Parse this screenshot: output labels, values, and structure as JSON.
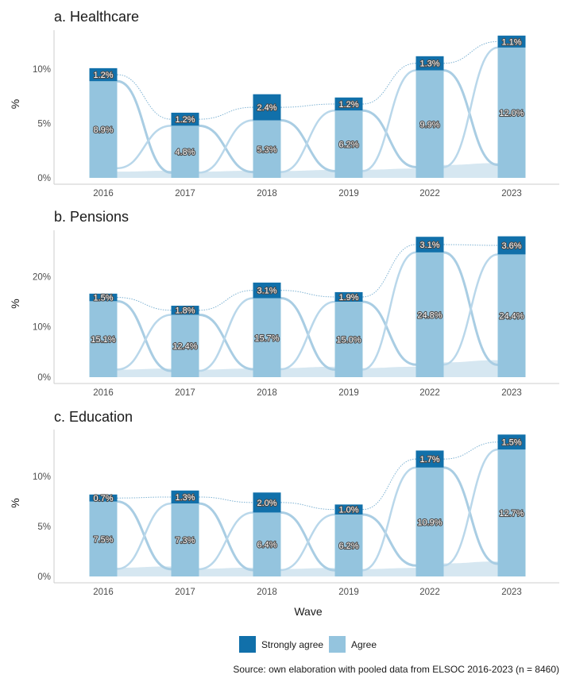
{
  "chart_data": {
    "type": "bar",
    "stacked": true,
    "xlabel": "Wave",
    "ylabel": "%",
    "grid": false,
    "legend_position": "bottom",
    "colors": {
      "strongly_agree": "#1170aa",
      "agree": "#94c4de",
      "flow": "#cfe3ef"
    },
    "legend": [
      "Strongly agree",
      "Agree"
    ],
    "caption": "Source: own elaboration with pooled data from ELSOC 2016-2023 (n = 8460)",
    "categories": [
      "2016",
      "2017",
      "2018",
      "2019",
      "2022",
      "2023"
    ],
    "panels": [
      {
        "title": "a. Healthcare",
        "ylim": [
          0,
          13.6
        ],
        "y_ticks": [
          0,
          5,
          10
        ],
        "y_tick_labels": [
          "0%",
          "5%",
          "10%"
        ],
        "series": [
          {
            "name": "Agree",
            "values": [
              8.9,
              4.8,
              5.3,
              6.2,
              9.9,
              12.0
            ],
            "labels": [
              "8.9%",
              "4.8%",
              "5.3%",
              "6.2%",
              "9.9%",
              "12.0%"
            ]
          },
          {
            "name": "Strongly agree",
            "values": [
              1.2,
              1.2,
              2.4,
              1.2,
              1.3,
              1.1
            ],
            "labels": [
              "1.2%",
              "1.2%",
              "2.4%",
              "1.2%",
              "1.3%",
              "1.1%"
            ]
          }
        ]
      },
      {
        "title": "b. Pensions",
        "ylim": [
          0,
          29.2
        ],
        "y_ticks": [
          0,
          10,
          20
        ],
        "y_tick_labels": [
          "0%",
          "10%",
          "20%"
        ],
        "series": [
          {
            "name": "Agree",
            "values": [
              15.1,
              12.4,
              15.7,
              15.0,
              24.8,
              24.4
            ],
            "labels": [
              "15.1%",
              "12.4%",
              "15.7%",
              "15.0%",
              "24.8%",
              "24.4%"
            ]
          },
          {
            "name": "Strongly agree",
            "values": [
              1.5,
              1.8,
              3.1,
              1.9,
              3.1,
              3.6
            ],
            "labels": [
              "1.5%",
              "1.8%",
              "3.1%",
              "1.9%",
              "3.1%",
              "3.6%"
            ]
          }
        ]
      },
      {
        "title": "c. Education",
        "ylim": [
          0,
          14.7
        ],
        "y_ticks": [
          0,
          5,
          10
        ],
        "y_tick_labels": [
          "0%",
          "5%",
          "10%"
        ],
        "series": [
          {
            "name": "Agree",
            "values": [
              7.5,
              7.3,
              6.4,
              6.2,
              10.9,
              12.7
            ],
            "labels": [
              "7.5%",
              "7.3%",
              "6.4%",
              "6.2%",
              "10.9%",
              "12.7%"
            ]
          },
          {
            "name": "Strongly agree",
            "values": [
              0.7,
              1.3,
              2.0,
              1.0,
              1.7,
              1.5
            ],
            "labels": [
              "0.7%",
              "1.3%",
              "2.0%",
              "1.0%",
              "1.7%",
              "1.5%"
            ]
          }
        ]
      }
    ]
  }
}
